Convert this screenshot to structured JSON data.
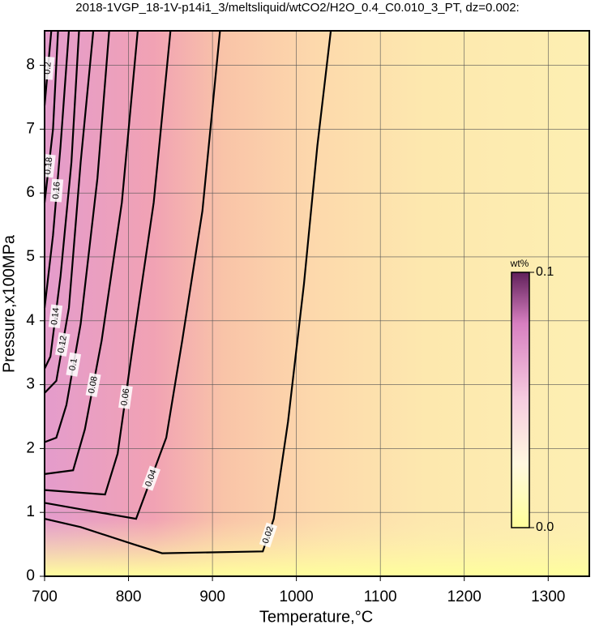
{
  "chart_data": {
    "type": "contour",
    "title": "2018-1VGP_18-1V-p14i1_3/meltsliquid/wtCO2/H2O_0.4_C0.010_3_PT, dz=0.002:",
    "x_label": "Temperature,°C",
    "y_label": "Pressure,x100MPa",
    "xlim": [
      700,
      1349
    ],
    "ylim": [
      0,
      8.54
    ],
    "xticks": [
      700,
      800,
      900,
      1000,
      1100,
      1200,
      1300
    ],
    "yticks": [
      0,
      1,
      2,
      3,
      4,
      5,
      6,
      7,
      8
    ],
    "grid": true,
    "colorbar": {
      "label": "wt%",
      "lim": [
        0,
        0.1
      ],
      "ticks": [
        {
          "value": 0,
          "label": "0.0"
        },
        0.1
      ]
    },
    "contours": [
      {
        "level": 0.02,
        "x": [
          1041,
          1025,
          1009,
          990,
          973,
          960,
          840,
          806,
          743,
          700
        ],
        "y": [
          8.54,
          6.74,
          4.58,
          2.42,
          0.9,
          0.39,
          0.36,
          0.5,
          0.77,
          0.9
        ]
      },
      {
        "level": 0.04,
        "x": [
          909,
          888,
          864,
          845,
          809,
          743,
          700
        ],
        "y": [
          8.54,
          5.72,
          3.69,
          2.17,
          0.9,
          1.05,
          1.15
        ]
      },
      {
        "level": 0.06,
        "x": [
          850,
          830,
          806,
          787,
          772,
          700
        ],
        "y": [
          8.54,
          5.85,
          3.69,
          1.92,
          1.28,
          1.35
        ]
      },
      {
        "level": 0.08,
        "x": [
          811,
          792,
          768,
          748,
          734,
          700
        ],
        "y": [
          8.54,
          5.85,
          3.69,
          2.3,
          1.66,
          1.6
        ]
      },
      {
        "level": 0.1,
        "x": [
          777,
          763,
          743,
          726,
          714,
          700
        ],
        "y": [
          8.54,
          6.23,
          3.95,
          2.68,
          2.17,
          2.1
        ]
      },
      {
        "level": 0.12,
        "x": [
          758,
          743,
          729,
          714,
          700
        ],
        "y": [
          8.54,
          6.48,
          4.2,
          3.06,
          2.87
        ]
      },
      {
        "level": 0.14,
        "x": [
          741,
          732,
          719,
          707,
          700
        ],
        "y": [
          8.54,
          6.48,
          4.7,
          3.44,
          3.25
        ]
      },
      {
        "level": 0.16,
        "x": [
          729,
          719,
          710,
          700
        ],
        "y": [
          8.54,
          6.74,
          5.34,
          4.2
        ]
      },
      {
        "level": 0.18,
        "x": [
          716,
          710,
          700
        ],
        "y": [
          8.54,
          7.0,
          5.85
        ]
      },
      {
        "level": 0.2,
        "x": [
          708,
          700
        ],
        "y": [
          8.54,
          7.37
        ]
      }
    ]
  }
}
